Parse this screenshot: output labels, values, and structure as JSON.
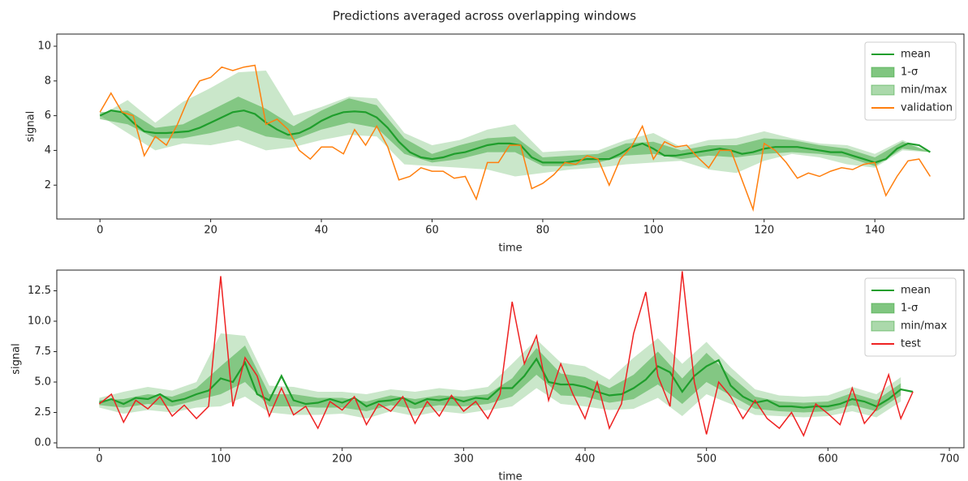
{
  "title": "Predictions averaged across overlapping windows",
  "chart_data": [
    {
      "type": "line",
      "xlabel": "time",
      "ylabel": "signal",
      "legend": "upper right",
      "xlim": [
        -7.8,
        156.1
      ],
      "ylim": [
        0.05,
        10.7
      ],
      "xticks": [
        0,
        20,
        40,
        60,
        80,
        100,
        120,
        140
      ],
      "yticks": [
        2,
        4,
        6,
        8,
        10
      ],
      "x": [
        0,
        2,
        4,
        6,
        8,
        10,
        12,
        14,
        16,
        18,
        20,
        22,
        24,
        26,
        28,
        30,
        32,
        34,
        36,
        38,
        40,
        42,
        44,
        46,
        48,
        50,
        52,
        54,
        56,
        58,
        60,
        62,
        64,
        66,
        68,
        70,
        72,
        74,
        76,
        78,
        80,
        82,
        84,
        86,
        88,
        90,
        92,
        94,
        96,
        98,
        100,
        102,
        104,
        106,
        108,
        110,
        112,
        114,
        116,
        118,
        120,
        122,
        124,
        126,
        128,
        130,
        132,
        134,
        136,
        138,
        140,
        142,
        144,
        146,
        148,
        150
      ],
      "series": [
        {
          "name": "mean",
          "kind": "line",
          "color": "#1f9e2c",
          "values": [
            6.0,
            6.3,
            6.2,
            5.6,
            5.1,
            5.0,
            5.0,
            5.05,
            5.1,
            5.3,
            5.6,
            5.9,
            6.2,
            6.3,
            6.1,
            5.6,
            5.2,
            4.9,
            5.0,
            5.3,
            5.7,
            6.0,
            6.2,
            6.25,
            6.2,
            5.9,
            5.3,
            4.5,
            3.9,
            3.6,
            3.5,
            3.6,
            3.8,
            3.9,
            4.1,
            4.3,
            4.4,
            4.4,
            4.3,
            3.6,
            3.3,
            3.3,
            3.3,
            3.4,
            3.5,
            3.5,
            3.5,
            3.8,
            4.2,
            4.4,
            4.1,
            3.7,
            3.7,
            3.8,
            3.9,
            4.0,
            4.1,
            4.0,
            3.8,
            3.9,
            4.1,
            4.2,
            4.2,
            4.2,
            4.1,
            4.0,
            3.9,
            3.9,
            3.7,
            3.5,
            3.3,
            3.5,
            4.1,
            4.4,
            4.3,
            3.9
          ]
        },
        {
          "name": "1-σ",
          "kind": "band",
          "color": "#2ca02c",
          "opacity": 0.45,
          "x": [
            0,
            5,
            10,
            15,
            20,
            25,
            30,
            35,
            40,
            45,
            50,
            55,
            60,
            65,
            70,
            75,
            80,
            85,
            90,
            95,
            100,
            105,
            110,
            115,
            120,
            125,
            130,
            135,
            140,
            145,
            150
          ],
          "lower": [
            5.8,
            5.5,
            4.7,
            4.7,
            5.0,
            5.4,
            4.8,
            4.6,
            5.2,
            5.6,
            5.3,
            3.8,
            3.3,
            3.5,
            3.9,
            3.9,
            3.1,
            3.1,
            3.3,
            3.7,
            3.8,
            3.5,
            3.7,
            3.6,
            3.8,
            3.9,
            3.8,
            3.6,
            3.1,
            4.1,
            3.9
          ],
          "upper": [
            6.2,
            6.3,
            5.3,
            5.5,
            6.3,
            7.1,
            6.4,
            5.4,
            6.3,
            7.0,
            6.6,
            4.7,
            3.8,
            4.3,
            4.7,
            4.8,
            3.6,
            3.7,
            3.8,
            4.4,
            4.5,
            4.0,
            4.3,
            4.3,
            4.7,
            4.6,
            4.3,
            4.1,
            3.6,
            4.5,
            3.9
          ]
        },
        {
          "name": "min/max",
          "kind": "band",
          "color": "#2ca02c",
          "opacity": 0.25,
          "x": [
            0,
            5,
            10,
            15,
            20,
            25,
            30,
            35,
            40,
            45,
            50,
            55,
            60,
            65,
            70,
            75,
            80,
            85,
            90,
            95,
            100,
            105,
            110,
            115,
            120,
            125,
            130,
            135,
            140,
            145,
            150
          ],
          "lower": [
            6.0,
            5.0,
            4.0,
            4.4,
            4.3,
            4.6,
            4.0,
            4.2,
            4.6,
            4.9,
            4.8,
            3.2,
            3.1,
            3.0,
            2.9,
            2.5,
            2.7,
            2.9,
            3.0,
            3.2,
            3.3,
            3.4,
            2.9,
            2.7,
            3.4,
            3.8,
            3.6,
            3.2,
            3.0,
            4.0,
            3.9
          ],
          "upper": [
            6.0,
            6.9,
            5.6,
            6.8,
            7.6,
            8.5,
            8.6,
            6.0,
            6.5,
            7.1,
            7.0,
            5.0,
            4.3,
            4.6,
            5.2,
            5.5,
            3.9,
            4.0,
            4.0,
            4.6,
            5.0,
            4.2,
            4.6,
            4.7,
            5.1,
            4.7,
            4.4,
            4.3,
            3.8,
            4.6,
            3.9
          ]
        },
        {
          "name": "validation",
          "kind": "line",
          "color": "#ff7f0e",
          "values": [
            6.2,
            7.3,
            6.2,
            6.0,
            3.7,
            4.8,
            4.3,
            5.5,
            7.0,
            8.0,
            8.2,
            8.8,
            8.6,
            8.8,
            8.9,
            5.5,
            5.8,
            5.2,
            4.0,
            3.5,
            4.2,
            4.2,
            3.8,
            5.2,
            4.3,
            5.4,
            4.2,
            2.3,
            2.5,
            3.0,
            2.8,
            2.8,
            2.4,
            2.5,
            1.2,
            3.3,
            3.3,
            4.3,
            4.3,
            1.8,
            2.1,
            2.6,
            3.3,
            3.2,
            3.7,
            3.5,
            2.0,
            3.5,
            4.2,
            5.4,
            3.5,
            4.5,
            4.2,
            4.3,
            3.6,
            3.0,
            4.0,
            4.0,
            2.3,
            0.6,
            4.4,
            4.0,
            3.3,
            2.4,
            2.7,
            2.5,
            2.8,
            3.0,
            2.9,
            3.2,
            3.3,
            1.4,
            2.5,
            3.4,
            3.5,
            2.5
          ]
        }
      ]
    },
    {
      "type": "line",
      "xlabel": "time",
      "ylabel": "signal",
      "legend": "upper right",
      "xlim": [
        -35,
        712
      ],
      "ylim": [
        -0.4,
        14.2
      ],
      "xticks": [
        0,
        100,
        200,
        300,
        400,
        500,
        600,
        700
      ],
      "yticks": [
        {
          "value": 0,
          "label": "0.0"
        },
        2.5,
        {
          "value": 5,
          "label": "5.0"
        },
        7.5,
        {
          "value": 10,
          "label": "10.0"
        },
        12.5
      ],
      "x": [
        0,
        10,
        20,
        30,
        40,
        50,
        60,
        70,
        80,
        90,
        100,
        110,
        120,
        130,
        140,
        150,
        160,
        170,
        180,
        190,
        200,
        210,
        220,
        230,
        240,
        250,
        260,
        270,
        280,
        290,
        300,
        310,
        320,
        330,
        340,
        350,
        360,
        370,
        380,
        390,
        400,
        410,
        420,
        430,
        440,
        450,
        460,
        470,
        480,
        490,
        500,
        510,
        520,
        530,
        540,
        550,
        560,
        570,
        580,
        590,
        600,
        610,
        620,
        630,
        640,
        650,
        660,
        670
      ],
      "series": [
        {
          "name": "mean",
          "kind": "line",
          "color": "#1f9e2c",
          "values": [
            3.3,
            3.6,
            3.2,
            3.7,
            3.6,
            4.0,
            3.4,
            3.6,
            4.0,
            4.3,
            5.3,
            5.0,
            6.6,
            4.0,
            3.5,
            5.5,
            3.5,
            3.2,
            3.3,
            3.6,
            3.3,
            3.7,
            3.0,
            3.4,
            3.5,
            3.7,
            3.2,
            3.6,
            3.5,
            3.7,
            3.4,
            3.7,
            3.6,
            4.5,
            4.5,
            5.5,
            6.9,
            5.0,
            4.8,
            4.8,
            4.6,
            4.2,
            3.9,
            4.0,
            4.5,
            5.2,
            6.3,
            5.8,
            4.2,
            5.5,
            6.3,
            6.8,
            4.7,
            3.8,
            3.3,
            3.5,
            3.0,
            3.0,
            2.9,
            3.0,
            3.0,
            3.2,
            3.6,
            3.4,
            3.0,
            3.6,
            4.4,
            4.2
          ]
        },
        {
          "name": "1-σ",
          "kind": "band",
          "color": "#2ca02c",
          "opacity": 0.45,
          "x": [
            0,
            20,
            40,
            60,
            80,
            100,
            120,
            140,
            160,
            180,
            200,
            220,
            240,
            260,
            280,
            300,
            320,
            340,
            360,
            380,
            400,
            420,
            440,
            460,
            480,
            500,
            520,
            540,
            560,
            580,
            600,
            620,
            640,
            660
          ],
          "lower": [
            3.1,
            2.9,
            3.2,
            3.0,
            3.5,
            4.0,
            5.0,
            3.0,
            3.0,
            2.9,
            2.9,
            2.6,
            3.1,
            2.8,
            3.1,
            3.0,
            3.2,
            3.8,
            5.6,
            3.9,
            3.8,
            3.3,
            3.6,
            4.8,
            3.2,
            5.0,
            3.9,
            2.8,
            2.6,
            2.5,
            2.6,
            3.1,
            2.6,
            3.9
          ],
          "upper": [
            3.5,
            3.6,
            4.0,
            3.8,
            4.5,
            6.3,
            8.0,
            4.0,
            4.0,
            3.7,
            3.7,
            3.4,
            3.9,
            3.6,
            3.9,
            3.8,
            4.0,
            5.3,
            7.8,
            5.7,
            5.4,
            4.5,
            5.6,
            7.5,
            5.3,
            7.4,
            5.5,
            3.8,
            3.4,
            3.3,
            3.4,
            4.1,
            3.5,
            4.9
          ]
        },
        {
          "name": "min/max",
          "kind": "band",
          "color": "#2ca02c",
          "opacity": 0.25,
          "x": [
            0,
            20,
            40,
            60,
            80,
            100,
            120,
            140,
            160,
            180,
            200,
            220,
            240,
            260,
            280,
            300,
            320,
            340,
            360,
            380,
            400,
            420,
            440,
            460,
            480,
            500,
            520,
            540,
            560,
            580,
            600,
            620,
            640,
            660
          ],
          "lower": [
            2.9,
            2.4,
            2.7,
            2.5,
            2.9,
            3.0,
            3.8,
            2.5,
            2.3,
            2.3,
            2.4,
            2.0,
            2.6,
            2.2,
            2.6,
            2.4,
            2.7,
            3.0,
            4.5,
            3.2,
            3.0,
            2.7,
            2.8,
            3.7,
            2.2,
            4.0,
            3.2,
            2.3,
            2.2,
            2.1,
            2.2,
            2.6,
            2.1,
            3.4
          ],
          "upper": [
            3.7,
            4.2,
            4.6,
            4.3,
            5.0,
            9.0,
            8.8,
            4.7,
            4.6,
            4.2,
            4.2,
            4.0,
            4.4,
            4.2,
            4.5,
            4.3,
            4.6,
            6.5,
            8.5,
            6.6,
            6.3,
            5.2,
            7.0,
            8.6,
            6.5,
            8.3,
            6.2,
            4.4,
            3.9,
            3.8,
            3.9,
            4.6,
            4.0,
            5.4
          ]
        },
        {
          "name": "test",
          "kind": "line",
          "color": "#ee2222",
          "values": [
            3.2,
            4.0,
            1.7,
            3.5,
            2.8,
            3.8,
            2.2,
            3.1,
            2.0,
            3.0,
            13.7,
            3.0,
            7.0,
            5.5,
            2.2,
            4.5,
            2.3,
            3.0,
            1.2,
            3.4,
            2.7,
            3.8,
            1.5,
            3.2,
            2.6,
            3.8,
            1.6,
            3.4,
            2.2,
            3.9,
            2.6,
            3.4,
            2.0,
            4.0,
            11.6,
            6.5,
            8.8,
            3.5,
            6.5,
            4.0,
            2.0,
            5.0,
            1.2,
            3.2,
            9.0,
            12.4,
            5.5,
            3.0,
            14.1,
            5.0,
            0.7,
            5.0,
            3.8,
            2.0,
            3.5,
            2.0,
            1.2,
            2.5,
            0.6,
            3.2,
            2.4,
            1.5,
            4.5,
            1.6,
            2.8,
            5.6,
            2.0,
            4.2
          ]
        }
      ]
    }
  ]
}
